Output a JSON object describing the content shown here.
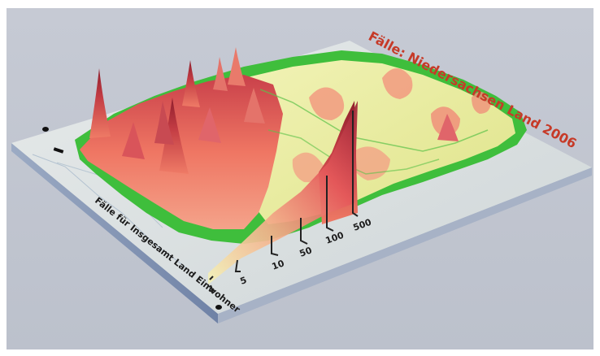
{
  "photo": {
    "subject": "3D printed relief map model with colored height surface and a scale legend",
    "colors": {
      "background": "#c3c7d1",
      "frame": "#ffffff",
      "base_top": "#d9dfdf",
      "base_front": "#7f8fb0",
      "base_side": "#aab6c8",
      "green_rim": "#39c23a",
      "yellow_fill": "#e9ec9b",
      "pink_peaks": "#ee6f5f",
      "peak_dark": "#b63b3b",
      "title_red": "#c63a28",
      "ink_blue": "#2c2f52"
    },
    "legend": {
      "ticks": [
        "1",
        "5",
        "10",
        "50",
        "100",
        "500"
      ],
      "lettering": [
        "Fälle für Insgesamt Land Einwohner",
        "Fälle: Niedersachsen Land 2006"
      ]
    },
    "icons": [
      "bullet-dot",
      "bullet-dash"
    ]
  }
}
